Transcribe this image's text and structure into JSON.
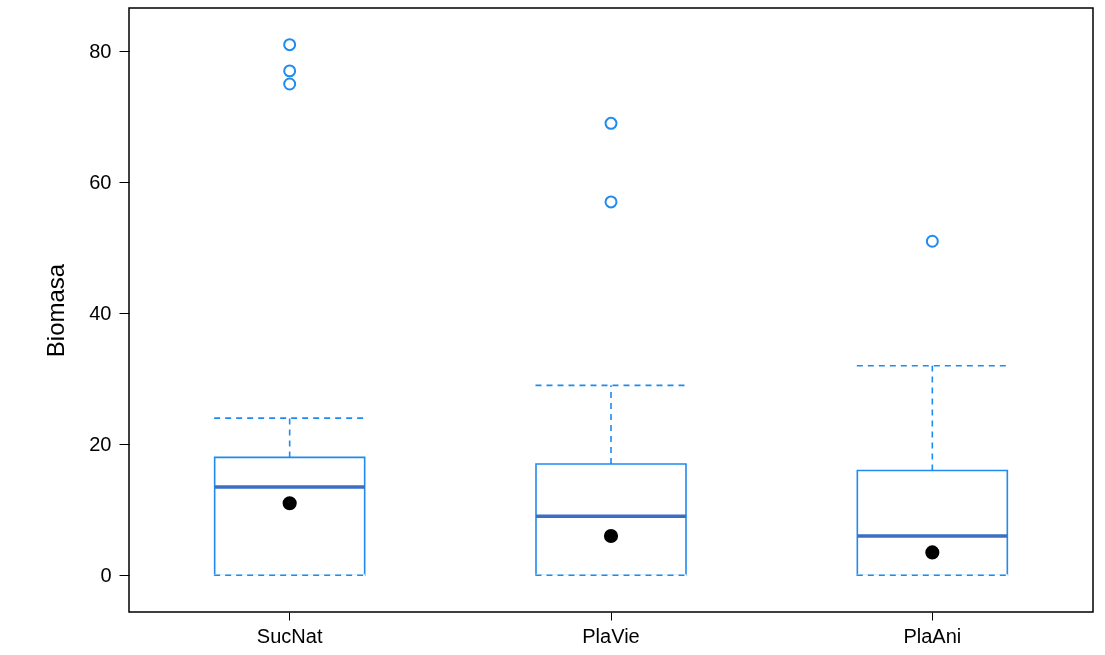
{
  "chart_data": {
    "type": "box",
    "ylabel": "Biomasa",
    "categories": [
      "SucNat",
      "PlaVie",
      "PlaAni"
    ],
    "series": [
      {
        "color": "#1f8bf0",
        "boxes": [
          {
            "low": 0,
            "q1": 0,
            "median": 13.5,
            "q3": 18,
            "high": 24,
            "mean": 11,
            "outliers": [
              75,
              77,
              81
            ]
          },
          {
            "low": 0,
            "q1": 0,
            "median": 9,
            "q3": 17,
            "high": 29,
            "mean": 6,
            "outliers": [
              57,
              69
            ]
          },
          {
            "low": 0,
            "q1": 0,
            "median": 6,
            "q3": 16,
            "high": 32,
            "mean": 3.5,
            "outliers": [
              51
            ]
          }
        ]
      }
    ],
    "ylim": [
      -5.6,
      86.6
    ],
    "yticks": [
      0,
      20,
      40,
      60,
      80
    ],
    "grid": false
  }
}
